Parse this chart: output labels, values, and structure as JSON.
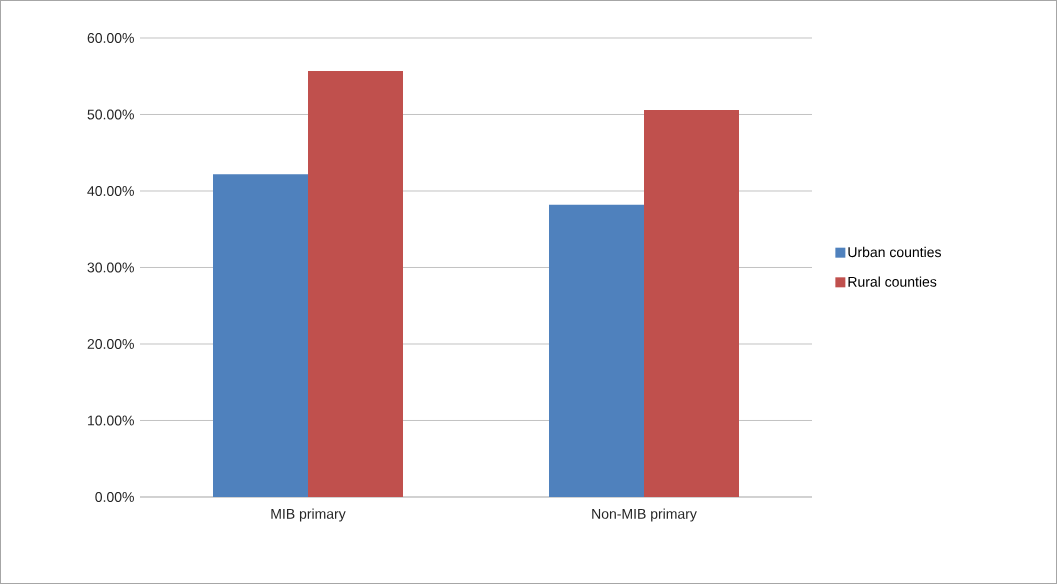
{
  "chart_data": {
    "type": "bar",
    "categories": [
      "MIB primary",
      "Non-MIB primary"
    ],
    "series": [
      {
        "name": "Urban counties",
        "color": "#4f81bd",
        "values": [
          42.2,
          38.2
        ]
      },
      {
        "name": "Rural counties",
        "color": "#c0504d",
        "values": [
          55.7,
          50.6
        ]
      }
    ],
    "ylim": [
      0,
      60
    ],
    "yticks": [
      {
        "value": 0,
        "label": "0.00%"
      },
      {
        "value": 10,
        "label": "10.00%"
      },
      {
        "value": 20,
        "label": "20.00%"
      },
      {
        "value": 30,
        "label": "30.00%"
      },
      {
        "value": 40,
        "label": "40.00%"
      },
      {
        "value": 50,
        "label": "50.00%"
      },
      {
        "value": 60,
        "label": "60.00%"
      }
    ],
    "grid": "y",
    "legend": "right"
  }
}
